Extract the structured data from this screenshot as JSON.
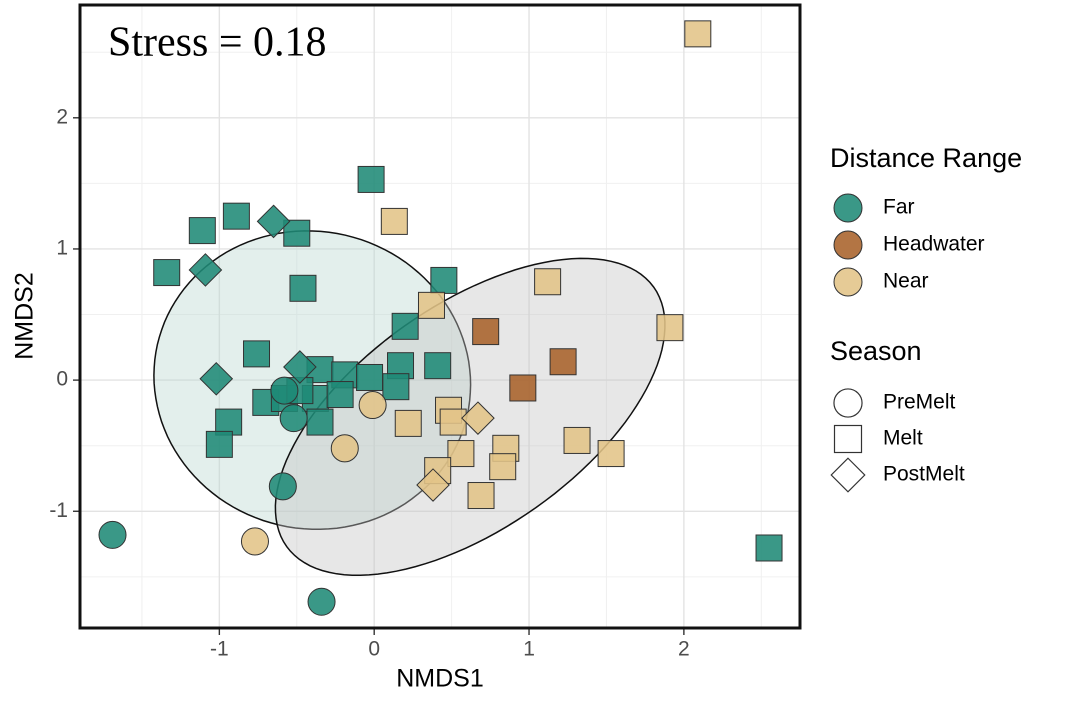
{
  "chart_data": {
    "type": "scatter",
    "annotation": "Stress = 0.18",
    "x_label": "NMDS1",
    "y_label": "NMDS2",
    "xlim": [
      -1.9,
      2.75
    ],
    "ylim": [
      -1.89,
      2.86
    ],
    "xticks": [
      -1,
      0,
      1,
      2
    ],
    "yticks": [
      -1,
      0,
      1,
      2
    ],
    "minor_xticks": [
      -1.5,
      -0.5,
      0.5,
      1.5,
      2.5
    ],
    "minor_yticks": [
      -1.5,
      -0.5,
      0.5,
      1.5,
      2.5
    ],
    "grid": true,
    "legend": {
      "position": "right",
      "groups": [
        {
          "title": "Distance Range",
          "entries": [
            {
              "name": "Far",
              "color": "#1f8a76"
            },
            {
              "name": "Headwater",
              "color": "#a8622a"
            },
            {
              "name": "Near",
              "color": "#e2c488"
            }
          ]
        },
        {
          "title": "Season",
          "entries": [
            {
              "name": "PreMelt",
              "shape": "circle"
            },
            {
              "name": "Melt",
              "shape": "square"
            },
            {
              "name": "PostMelt",
              "shape": "diamond"
            }
          ]
        }
      ]
    },
    "ellipses": [
      {
        "distance": "Far",
        "fill": "#b9d6cf",
        "cx": -0.4,
        "cy": 0.0,
        "a": 1.02,
        "b": 1.14,
        "angle": 8
      },
      {
        "distance": "Near",
        "fill": "#c4c4c4",
        "cx": 0.62,
        "cy": -0.28,
        "a": 1.55,
        "b": 0.8,
        "angle": 43
      }
    ],
    "series": [
      {
        "distance": "Far",
        "season": "Melt",
        "x": [
          -0.02,
          -0.89,
          -1.11,
          -0.5,
          -1.34,
          -0.46,
          0.45,
          0.2,
          -0.76,
          0.17,
          0.41,
          -0.35,
          -0.19,
          -0.03,
          0.14,
          -0.7,
          -0.58,
          -0.38,
          -0.22,
          -0.94,
          -0.35,
          -1.0,
          2.55,
          -0.48
        ],
        "y": [
          1.53,
          1.25,
          1.14,
          1.12,
          0.82,
          0.7,
          0.76,
          0.41,
          0.2,
          0.11,
          0.11,
          0.08,
          0.04,
          0.02,
          -0.05,
          -0.17,
          -0.14,
          -0.14,
          -0.11,
          -0.32,
          -0.32,
          -0.49,
          -1.28,
          -0.08
        ]
      },
      {
        "distance": "Far",
        "season": "PreMelt",
        "x": [
          -1.69,
          -0.34,
          -0.59,
          -0.52,
          -0.58
        ],
        "y": [
          -1.18,
          -1.69,
          -0.81,
          -0.29,
          -0.08
        ]
      },
      {
        "distance": "Far",
        "season": "PostMelt",
        "x": [
          -0.65,
          -1.09,
          -1.02,
          -0.48
        ],
        "y": [
          1.21,
          0.84,
          0.01,
          0.1
        ]
      },
      {
        "distance": "Headwater",
        "season": "Melt",
        "x": [
          0.72,
          1.22,
          0.96
        ],
        "y": [
          0.37,
          0.14,
          -0.06
        ]
      },
      {
        "distance": "Near",
        "season": "Melt",
        "x": [
          2.09,
          0.13,
          1.12,
          1.91,
          0.37,
          0.22,
          0.48,
          0.51,
          0.56,
          0.41,
          0.85,
          0.83,
          0.69,
          1.31,
          1.53
        ],
        "y": [
          2.64,
          1.21,
          0.75,
          0.4,
          0.57,
          -0.33,
          -0.23,
          -0.32,
          -0.56,
          -0.69,
          -0.52,
          -0.66,
          -0.88,
          -0.46,
          -0.56
        ]
      },
      {
        "distance": "Near",
        "season": "PreMelt",
        "x": [
          -0.01,
          -0.19,
          -0.77
        ],
        "y": [
          -0.19,
          -0.52,
          -1.23
        ]
      },
      {
        "distance": "Near",
        "season": "PostMelt",
        "x": [
          0.67,
          0.38
        ],
        "y": [
          -0.29,
          -0.8
        ]
      }
    ]
  }
}
